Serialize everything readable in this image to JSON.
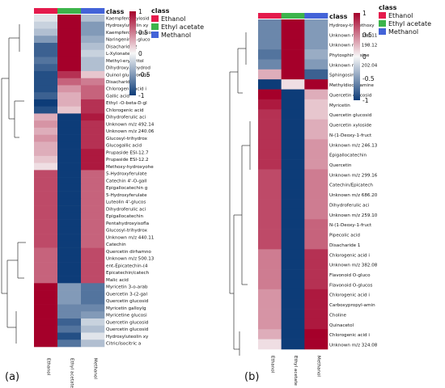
{
  "chart_data": [
    {
      "type": "heatmap",
      "panel_label": "(a)",
      "columns": [
        "Ethanol",
        "Ethyl acetate",
        "Methanol"
      ],
      "column_annotation": {
        "title": "class",
        "entries": [
          {
            "name": "Ethanol",
            "color": "#e41a4c"
          },
          {
            "name": "Ethyl acetate",
            "color": "#3cb44b"
          },
          {
            "name": "Methanol",
            "color": "#4363d8"
          }
        ]
      },
      "color_scale": {
        "ticks": [
          1,
          0.5,
          0,
          -0.5,
          -1
        ],
        "high": "#a5002a",
        "mid": "#f7f7f7",
        "low": "#0d3c78"
      },
      "rows": [
        {
          "label": "Kaempferol xylosid",
          "values": [
            -0.1,
            1.0,
            -0.3
          ]
        },
        {
          "label": "Hydroxyluteolin xy",
          "values": [
            -0.2,
            1.0,
            -0.5
          ]
        },
        {
          "label": "Kaempferol-O-gluco",
          "values": [
            -0.3,
            1.0,
            -0.5
          ]
        },
        {
          "label": "Naringenin-O-gluco",
          "values": [
            -0.5,
            1.0,
            -0.4
          ]
        },
        {
          "label": "Disacharide 2",
          "values": [
            -0.8,
            1.0,
            -0.3
          ]
        },
        {
          "label": "L-Xylonate",
          "values": [
            -0.8,
            1.0,
            -0.2
          ]
        },
        {
          "label": "Methyl-erythritol",
          "values": [
            -0.7,
            1.0,
            -0.3
          ]
        },
        {
          "label": "Dihydroxy-dihydrod",
          "values": [
            -0.8,
            1.0,
            -0.3
          ]
        },
        {
          "label": "Quinol glucuronide",
          "values": [
            -0.9,
            0.8,
            0.2
          ]
        },
        {
          "label": "Disacharide",
          "values": [
            -0.9,
            0.6,
            0.5
          ]
        },
        {
          "label": "Chlorogenic acid i",
          "values": [
            -0.9,
            0.4,
            0.6
          ]
        },
        {
          "label": "Gallic acid",
          "values": [
            -0.8,
            0.3,
            0.6
          ]
        },
        {
          "label": "Ethyl -O-beta-D-gl",
          "values": [
            -1.0,
            0.3,
            0.8
          ]
        },
        {
          "label": "Chlorogenic acid",
          "values": [
            -0.9,
            0.2,
            0.8
          ]
        },
        {
          "label": "Dihydroferulic aci",
          "values": [
            0.3,
            -1.0,
            0.9
          ]
        },
        {
          "label": "Unknown m/z 492.14",
          "values": [
            0.4,
            -1.0,
            0.8
          ]
        },
        {
          "label": "Unknown m/z 240.06",
          "values": [
            0.3,
            -1.0,
            0.8
          ]
        },
        {
          "label": "Glucosyl-trihydrox",
          "values": [
            0.4,
            -1.0,
            0.8
          ]
        },
        {
          "label": "Glucogallic acid",
          "values": [
            0.3,
            -1.0,
            0.8
          ]
        },
        {
          "label": "Prupaside ESI-12.7",
          "values": [
            0.3,
            -1.0,
            0.9
          ]
        },
        {
          "label": "Prupaside ESI-12.2",
          "values": [
            0.2,
            -1.0,
            0.9
          ]
        },
        {
          "label": "Methoxy-hydroxyohe",
          "values": [
            0.1,
            -1.0,
            0.9
          ]
        },
        {
          "label": "5-Hydroxyferulate",
          "values": [
            0.7,
            -1.0,
            0.6
          ]
        },
        {
          "label": "Catechin 4'-O-gall",
          "values": [
            0.7,
            -1.0,
            0.6
          ]
        },
        {
          "label": "Epigallocatechin g",
          "values": [
            0.7,
            -1.0,
            0.6
          ]
        },
        {
          "label": "5-Hydroxyferulate",
          "values": [
            0.7,
            -1.0,
            0.6
          ]
        },
        {
          "label": "Luteolin 4'-glucos",
          "values": [
            0.7,
            -1.0,
            0.6
          ]
        },
        {
          "label": "Dihydroferulic aci",
          "values": [
            0.7,
            -1.0,
            0.6
          ]
        },
        {
          "label": "Epigallocatechin",
          "values": [
            0.7,
            -1.0,
            0.6
          ]
        },
        {
          "label": "Pentahydroxyisofla",
          "values": [
            0.7,
            -1.0,
            0.6
          ]
        },
        {
          "label": "Glucosyl-trihydrox",
          "values": [
            0.7,
            -1.0,
            0.6
          ]
        },
        {
          "label": "Unknown m/z 440.11",
          "values": [
            0.7,
            -1.0,
            0.6
          ]
        },
        {
          "label": "Catechin",
          "values": [
            0.7,
            -1.0,
            0.6
          ]
        },
        {
          "label": "Quercetin dirhamno",
          "values": [
            0.6,
            -1.0,
            0.7
          ]
        },
        {
          "label": "Unknown m/z 500.13",
          "values": [
            0.6,
            -1.0,
            0.7
          ]
        },
        {
          "label": "ent-Epicatechin-(4",
          "values": [
            0.6,
            -1.0,
            0.7
          ]
        },
        {
          "label": "Epicatechin/catech",
          "values": [
            0.6,
            -1.0,
            0.7
          ]
        },
        {
          "label": "Malic acid",
          "values": [
            0.6,
            -1.0,
            0.7
          ]
        },
        {
          "label": "Myricetin 3-o-arab",
          "values": [
            1.0,
            -0.5,
            -0.7
          ]
        },
        {
          "label": "Quercetin 3-(2-gal",
          "values": [
            1.0,
            -0.5,
            -0.7
          ]
        },
        {
          "label": "Quercetin glucosid",
          "values": [
            1.0,
            -0.5,
            -0.7
          ]
        },
        {
          "label": "Myricetin galloylg",
          "values": [
            1.0,
            -0.6,
            -0.6
          ]
        },
        {
          "label": "Myricetine glucosi",
          "values": [
            1.0,
            -0.6,
            -0.5
          ]
        },
        {
          "label": "Quercetin glucosid",
          "values": [
            1.0,
            -0.8,
            -0.2
          ]
        },
        {
          "label": "Quercetin glucosid",
          "values": [
            1.0,
            -0.7,
            -0.3
          ]
        },
        {
          "label": "Hydroxyluteolin xy",
          "values": [
            1.0,
            -0.9,
            -0.1
          ]
        },
        {
          "label": "Citric/isocitric a",
          "values": [
            1.0,
            -0.7,
            -0.3
          ]
        }
      ]
    },
    {
      "type": "heatmap",
      "panel_label": "(b)",
      "columns": [
        "Ethanol",
        "Ethyl acetate",
        "Methanol"
      ],
      "column_annotation": {
        "title": "class",
        "entries": [
          {
            "name": "Ethanol",
            "color": "#e41a4c"
          },
          {
            "name": "Ethyl acetate",
            "color": "#3cb44b"
          },
          {
            "name": "Methanol",
            "color": "#4363d8"
          }
        ]
      },
      "color_scale": {
        "ticks": [
          1,
          0.5,
          0,
          -0.5,
          -1
        ],
        "high": "#a5002a",
        "mid": "#f7f7f7",
        "low": "#0d3c78"
      },
      "rows": [
        {
          "label": "Hydroxy-trimethoxy",
          "values": [
            -0.6,
            1.0,
            -0.5
          ]
        },
        {
          "label": "Unknown m/z 196.11",
          "values": [
            -0.6,
            1.0,
            -0.5
          ]
        },
        {
          "label": "Unknown m/z 198.12",
          "values": [
            -0.6,
            1.0,
            -0.5
          ]
        },
        {
          "label": "Phytosphingosine",
          "values": [
            -0.7,
            1.0,
            -0.4
          ]
        },
        {
          "label": "Unknown m/z 202.04",
          "values": [
            -0.6,
            1.0,
            -0.5
          ]
        },
        {
          "label": "Sphingosine",
          "values": [
            0.3,
            1.0,
            -0.8
          ]
        },
        {
          "label": "Methyldioctylamine",
          "values": [
            -1.0,
            0.1,
            1.0
          ]
        },
        {
          "label": "Quercetin glucosid",
          "values": [
            1.0,
            -1.0,
            0.3
          ]
        },
        {
          "label": "Myricetin",
          "values": [
            0.9,
            -1.0,
            0.2
          ]
        },
        {
          "label": "Quercetin glucosid",
          "values": [
            0.8,
            -1.0,
            0.2
          ]
        },
        {
          "label": "Quercetin xyloside",
          "values": [
            0.8,
            -1.0,
            0.3
          ]
        },
        {
          "label": "N-(1-Deoxy-1-fruct",
          "values": [
            0.8,
            -1.0,
            0.3
          ]
        },
        {
          "label": "Unknown m/z 246.13",
          "values": [
            0.8,
            -1.0,
            0.4
          ]
        },
        {
          "label": "Epigallocatechin",
          "values": [
            0.8,
            -1.0,
            0.4
          ]
        },
        {
          "label": "Quercetin",
          "values": [
            0.8,
            -1.0,
            0.4
          ]
        },
        {
          "label": "Unknown m/z 299.16",
          "values": [
            0.7,
            -1.0,
            0.5
          ]
        },
        {
          "label": "Catechin/Epicatech",
          "values": [
            0.7,
            -1.0,
            0.5
          ]
        },
        {
          "label": "Unknown m/z 686.20",
          "values": [
            0.7,
            -1.0,
            0.5
          ]
        },
        {
          "label": "Dihydroferulic aci",
          "values": [
            0.7,
            -1.0,
            0.5
          ]
        },
        {
          "label": "Unknown m/z 259.10",
          "values": [
            0.7,
            -1.0,
            0.5
          ]
        },
        {
          "label": "N-(1-Deoxy-1-fruct",
          "values": [
            0.7,
            -1.0,
            0.6
          ]
        },
        {
          "label": "Pipecolic acid",
          "values": [
            0.7,
            -1.0,
            0.6
          ]
        },
        {
          "label": "Disacharide 1",
          "values": [
            0.7,
            -1.0,
            0.6
          ]
        },
        {
          "label": "Chlorogenic acid i",
          "values": [
            0.5,
            -1.0,
            0.8
          ]
        },
        {
          "label": "Unknown m/z 382.08",
          "values": [
            0.5,
            -1.0,
            0.8
          ]
        },
        {
          "label": "Flavonoid O-gluco",
          "values": [
            0.5,
            -1.0,
            0.8
          ]
        },
        {
          "label": "Flavonoid O-glucos",
          "values": [
            0.5,
            -1.0,
            0.8
          ]
        },
        {
          "label": "Chlorogenic acid i",
          "values": [
            0.4,
            -1.0,
            0.9
          ]
        },
        {
          "label": "Carboxypropyl-amin",
          "values": [
            0.4,
            -1.0,
            0.9
          ]
        },
        {
          "label": "Choline",
          "values": [
            0.4,
            -1.0,
            0.9
          ]
        },
        {
          "label": "Quinacetol",
          "values": [
            0.4,
            -1.0,
            0.9
          ]
        },
        {
          "label": "Chlorogenic acid i",
          "values": [
            0.3,
            -1.0,
            1.0
          ]
        },
        {
          "label": "Unknown m/z 324.08",
          "values": [
            0.1,
            -1.0,
            1.0
          ]
        }
      ]
    }
  ]
}
